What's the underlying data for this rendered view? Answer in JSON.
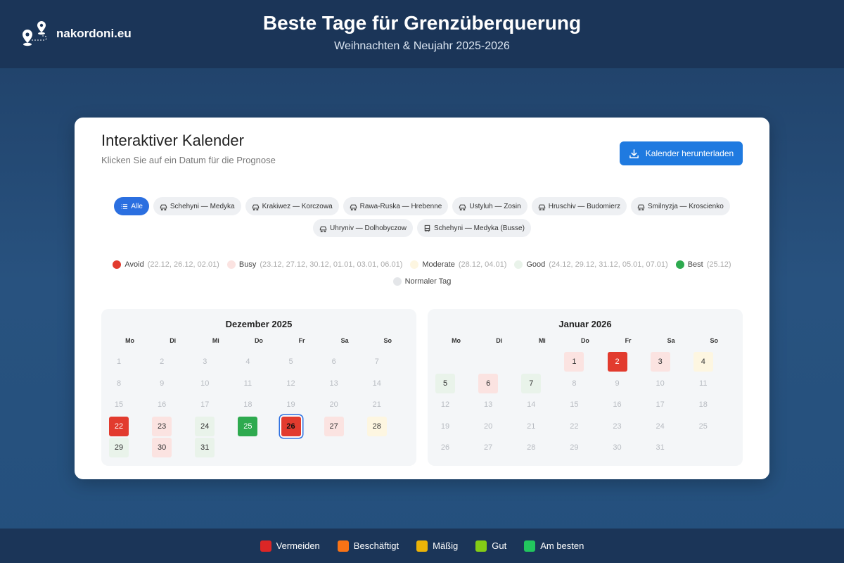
{
  "brand": {
    "name": "nakordoni.eu"
  },
  "header": {
    "title": "Beste Tage für Grenzüberquerung",
    "subtitle": "Weihnachten & Neujahr 2025-2026"
  },
  "card": {
    "title": "Interaktiver Kalender",
    "subtitle": "Klicken Sie auf ein Datum für die Prognose",
    "download_label": "Kalender herunterladen"
  },
  "filters": [
    {
      "label": "Alle",
      "icon": "list-icon",
      "active": true
    },
    {
      "label": "Schehyni — Medyka",
      "icon": "car-icon",
      "active": false
    },
    {
      "label": "Krakiwez — Korczowa",
      "icon": "car-icon",
      "active": false
    },
    {
      "label": "Rawa-Ruska — Hrebenne",
      "icon": "car-icon",
      "active": false
    },
    {
      "label": "Ustyluh — Zosin",
      "icon": "car-icon",
      "active": false
    },
    {
      "label": "Hruschiv — Budomierz",
      "icon": "car-icon",
      "active": false
    },
    {
      "label": "Smilnyzja — Kroscienko",
      "icon": "car-icon",
      "active": false
    },
    {
      "label": "Uhryniv — Dolhobyczow",
      "icon": "car-icon",
      "active": false
    },
    {
      "label": "Schehyni — Medyka (Busse)",
      "icon": "bus-icon",
      "active": false
    }
  ],
  "legend": [
    {
      "key": "avoid",
      "label": "Avoid",
      "dates": "(22.12, 26.12, 02.01)",
      "color": "#e23b2e"
    },
    {
      "key": "busy",
      "label": "Busy",
      "dates": "(23.12, 27.12, 30.12, 01.01, 03.01, 06.01)",
      "color": "#fbe3e1"
    },
    {
      "key": "moderate",
      "label": "Moderate",
      "dates": "(28.12, 04.01)",
      "color": "#fdf6e1"
    },
    {
      "key": "good",
      "label": "Good",
      "dates": "(24.12, 29.12, 31.12, 05.01, 07.01)",
      "color": "#e9f3ea"
    },
    {
      "key": "best",
      "label": "Best",
      "dates": "(25.12)",
      "color": "#2eaa4f"
    },
    {
      "key": "normal",
      "label": "Normaler Tag",
      "dates": "",
      "color": "#e4e6e9"
    }
  ],
  "weekdays": [
    "Mo",
    "Di",
    "Mi",
    "Do",
    "Fr",
    "Sa",
    "So"
  ],
  "months": [
    {
      "title": "Dezember 2025",
      "offset": 0,
      "days": 31,
      "status": {
        "22": "avoid",
        "23": "busy",
        "24": "good",
        "25": "best",
        "26": "avoid",
        "27": "busy",
        "28": "moderate",
        "29": "good",
        "30": "busy",
        "31": "good"
      },
      "selected": 26
    },
    {
      "title": "Januar 2026",
      "offset": 3,
      "days": 31,
      "status": {
        "1": "busy",
        "2": "avoid",
        "3": "busy",
        "4": "moderate",
        "5": "good",
        "6": "busy",
        "7": "good"
      },
      "selected": null
    }
  ],
  "footer": [
    {
      "label": "Vermeiden",
      "color": "#dc2626"
    },
    {
      "label": "Beschäftigt",
      "color": "#f97316"
    },
    {
      "label": "Mäßig",
      "color": "#eab308"
    },
    {
      "label": "Gut",
      "color": "#84cc16"
    },
    {
      "label": "Am besten",
      "color": "#22c55e"
    }
  ]
}
